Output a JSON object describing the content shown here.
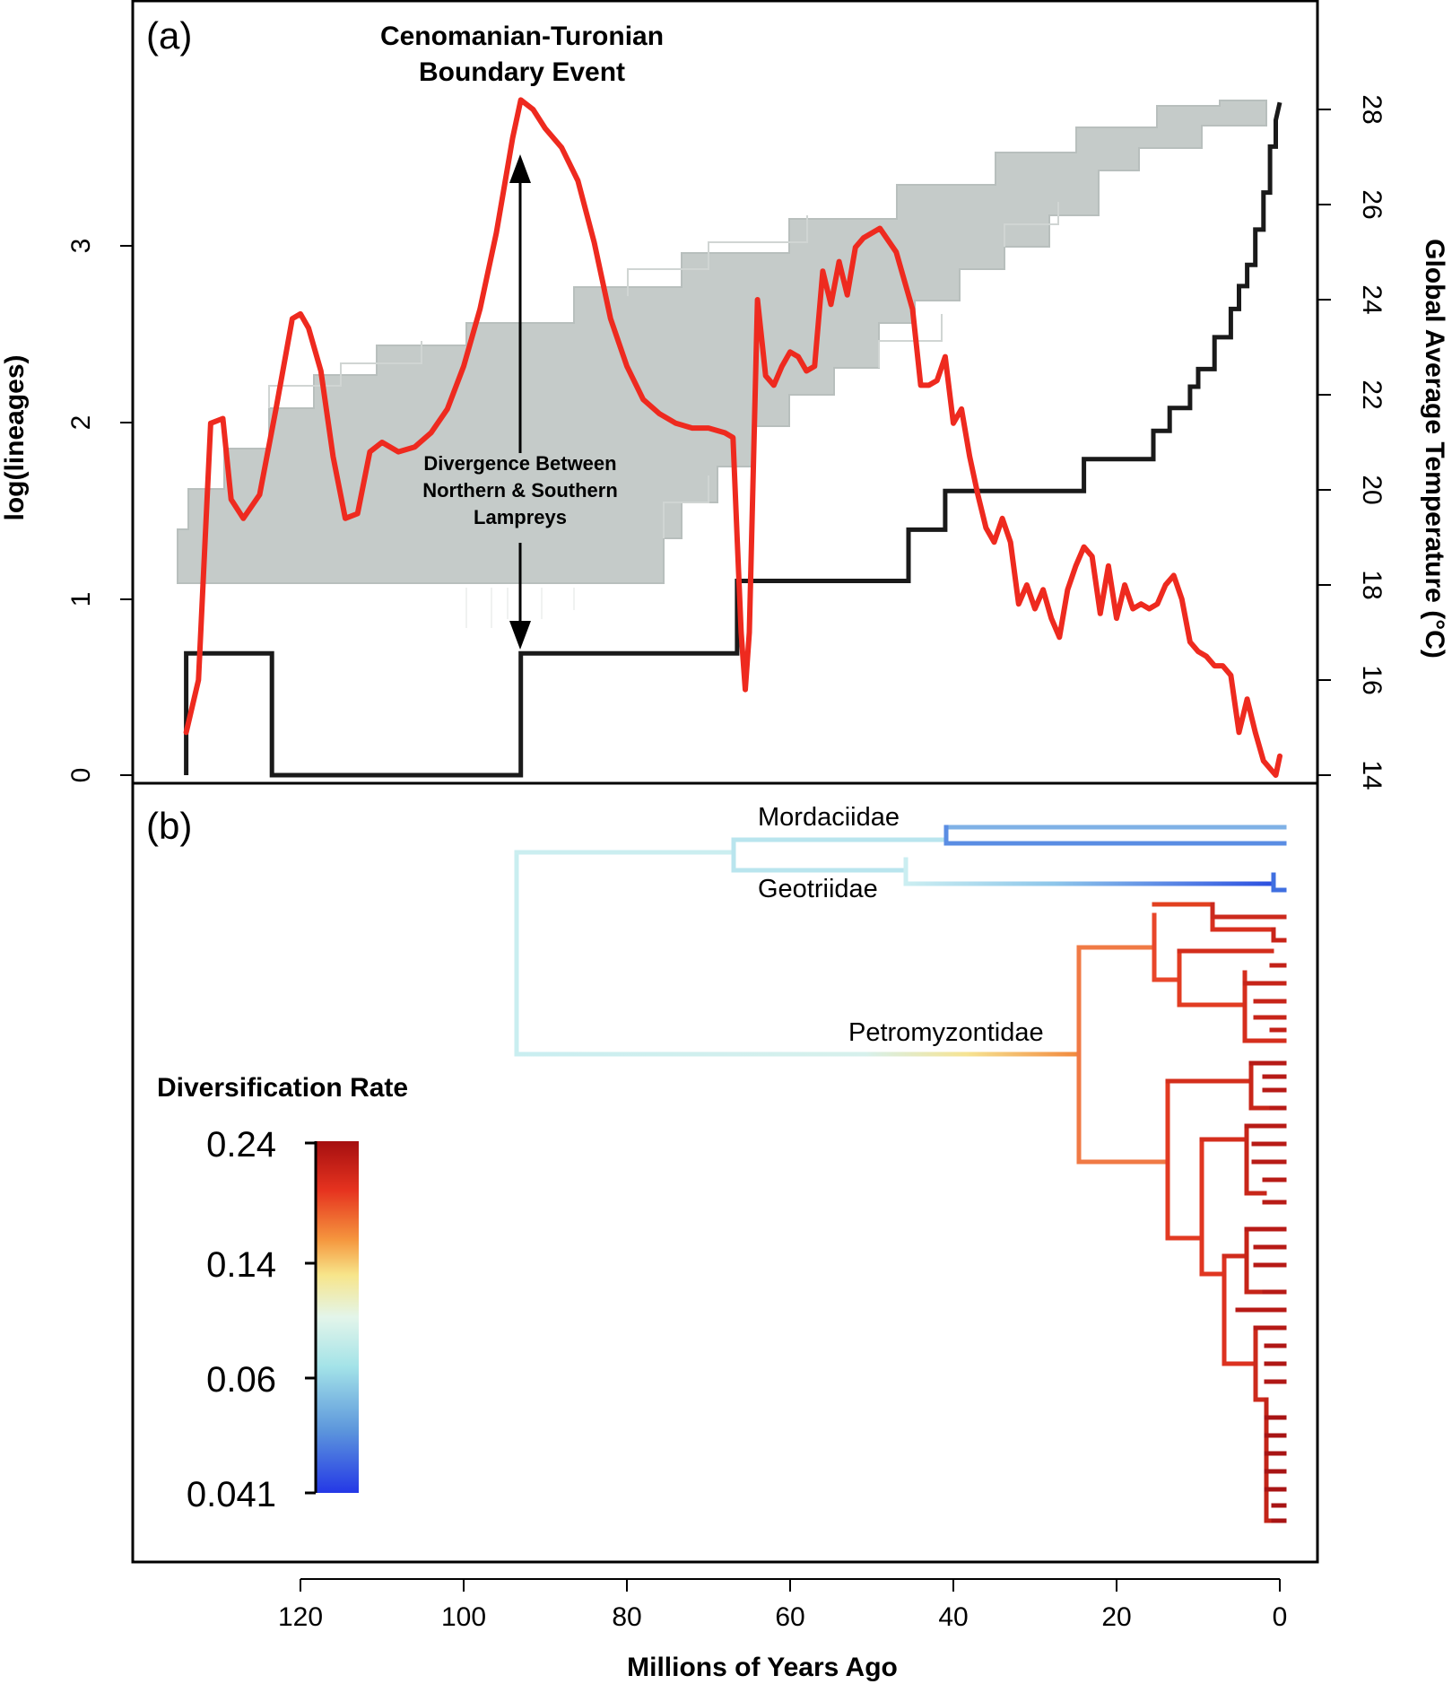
{
  "colors": {
    "temperature": "#ee2a1f",
    "ltt_empirical": "#1a1a1a",
    "ltt_posterior": "#c2c8c6",
    "frame": "#000000"
  },
  "chart_data": [
    {
      "type": "line",
      "panel_label": "(a)",
      "ylabel": "log(lineages)",
      "y2label": "Global Average Temperature (°C)",
      "x_reversed": true,
      "xlim": [
        0,
        136
      ],
      "ylim": [
        0,
        3.82
      ],
      "y2lim": [
        14,
        28.2
      ],
      "yticks": [
        0,
        1,
        2,
        3
      ],
      "y2ticks": [
        14,
        16,
        18,
        20,
        22,
        24,
        26,
        28
      ],
      "annotations": {
        "event_title_line1": "Cenomanian-Turonian",
        "event_title_line2": "Boundary Event",
        "divergence_line1": "Divergence Between",
        "divergence_line2": "Northern & Southern",
        "divergence_line3": "Lampreys"
      },
      "series": [
        {
          "key": "temperature",
          "axis": "right",
          "x": [
            134,
            132.5,
            131,
            129.5,
            128.5,
            127,
            125,
            123,
            121,
            120,
            119,
            117.5,
            116,
            114.5,
            113,
            111.5,
            110,
            108,
            106,
            104,
            102,
            100,
            98,
            96,
            94,
            93,
            91.5,
            90,
            88,
            86,
            84,
            82,
            80,
            78,
            76,
            74,
            72,
            70,
            68,
            67,
            66.5,
            66,
            65.5,
            65,
            64,
            63,
            62,
            61,
            60,
            59,
            58,
            57,
            56,
            55,
            54,
            53,
            52,
            51,
            49,
            47,
            45,
            44,
            43,
            42,
            41,
            40,
            39,
            38,
            37,
            36,
            35,
            34,
            33,
            32,
            31,
            30,
            29,
            28,
            27,
            26,
            25,
            24,
            23,
            22,
            21,
            20,
            19,
            18,
            17,
            16,
            15,
            14,
            13,
            12,
            11,
            10,
            9,
            8,
            7,
            6,
            5,
            4,
            3,
            2,
            1,
            0.5,
            0
          ],
          "y": [
            14.9,
            16.0,
            21.4,
            21.5,
            19.8,
            19.4,
            19.9,
            21.7,
            23.6,
            23.7,
            23.4,
            22.5,
            20.7,
            19.4,
            19.5,
            20.8,
            21.0,
            20.8,
            20.9,
            21.2,
            21.7,
            22.6,
            23.8,
            25.4,
            27.4,
            28.2,
            28.0,
            27.6,
            27.2,
            26.5,
            25.2,
            23.6,
            22.6,
            21.9,
            21.6,
            21.4,
            21.3,
            21.3,
            21.2,
            21.1,
            19.0,
            17.0,
            15.8,
            17.0,
            24.0,
            22.4,
            22.2,
            22.6,
            22.9,
            22.8,
            22.5,
            22.6,
            24.6,
            23.9,
            24.8,
            24.1,
            25.1,
            25.3,
            25.5,
            25.0,
            23.8,
            22.2,
            22.2,
            22.3,
            22.8,
            21.4,
            21.7,
            20.7,
            19.9,
            19.2,
            18.9,
            19.4,
            18.9,
            17.6,
            18.0,
            17.5,
            17.9,
            17.3,
            16.9,
            17.9,
            18.4,
            18.8,
            18.6,
            17.4,
            18.4,
            17.3,
            18.0,
            17.5,
            17.6,
            17.5,
            17.6,
            18.0,
            18.2,
            17.7,
            16.8,
            16.6,
            16.5,
            16.3,
            16.3,
            16.1,
            14.9,
            15.6,
            14.9,
            14.3,
            14.1,
            14.0,
            14.4
          ]
        },
        {
          "key": "ltt_empirical",
          "axis": "left",
          "step": true,
          "x": [
            134,
            134,
            123.5,
            123.5,
            93,
            93,
            66.5,
            66.5,
            45.5,
            45.5,
            41,
            41,
            24,
            24,
            15.5,
            15.5,
            13.5,
            13.5,
            11,
            11,
            10,
            10,
            8,
            8,
            6,
            6,
            5,
            5,
            4,
            4,
            3,
            3,
            2,
            2,
            1.2,
            1.2,
            0.5,
            0.5,
            0
          ],
          "y": [
            0,
            0.69,
            0.69,
            0,
            0,
            0.69,
            0.69,
            1.1,
            1.1,
            1.39,
            1.39,
            1.61,
            1.61,
            1.79,
            1.79,
            1.95,
            1.95,
            2.08,
            2.08,
            2.2,
            2.2,
            2.3,
            2.3,
            2.48,
            2.48,
            2.64,
            2.64,
            2.77,
            2.77,
            2.89,
            2.89,
            3.09,
            3.09,
            3.3,
            3.3,
            3.56,
            3.56,
            3.71,
            3.81
          ]
        }
      ]
    },
    {
      "type": "tree",
      "panel_label": "(b)",
      "xlabel": "Millions of Years Ago",
      "x_reversed": true,
      "xticks": [
        120,
        100,
        80,
        60,
        40,
        20,
        0
      ],
      "clades": {
        "mordaciidae": "Mordaciidae",
        "geotriidae": "Geotriidae",
        "petromyzontidae": "Petromyzontidae"
      },
      "legend": {
        "title": "Diversification Rate",
        "ticks": [
          "0.24",
          "0.14",
          "0.06",
          "0.041"
        ],
        "tick_values": [
          0.24,
          0.14,
          0.06,
          0.041
        ]
      }
    }
  ]
}
